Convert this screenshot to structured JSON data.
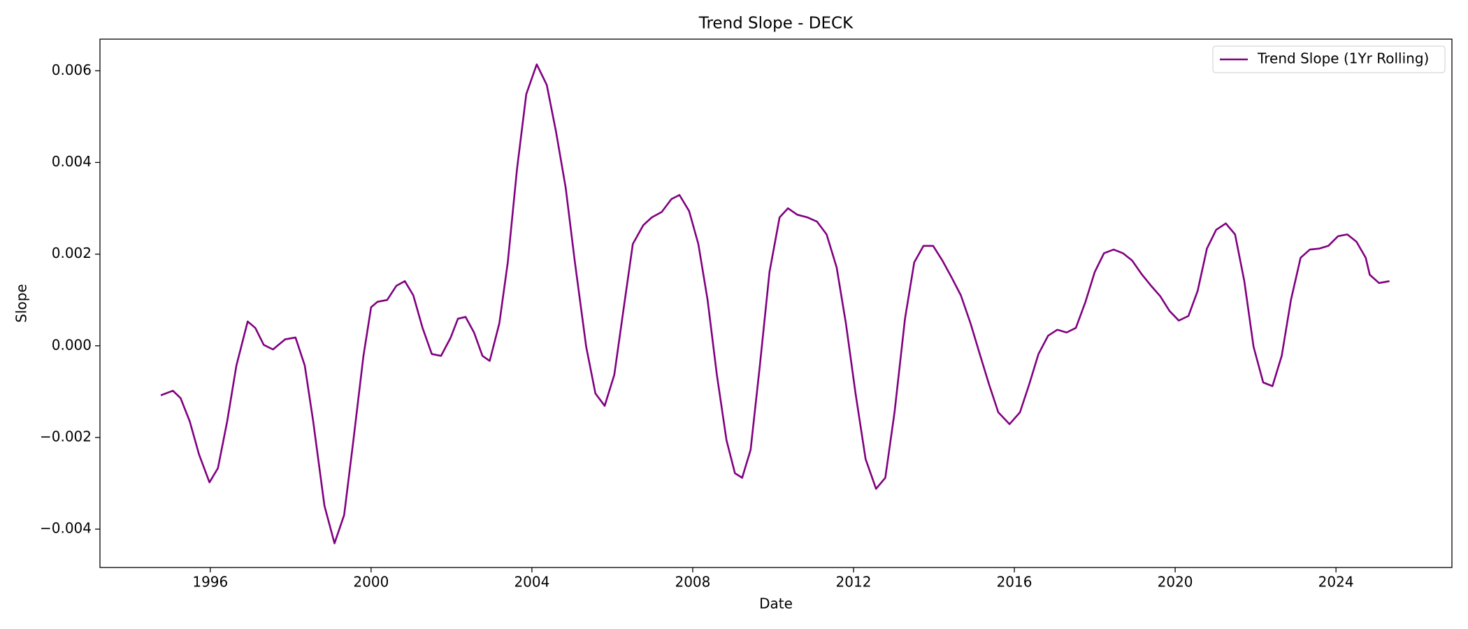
{
  "chart_data": {
    "type": "line",
    "title": "Trend Slope - DECK",
    "xlabel": "Date",
    "ylabel": "Slope",
    "x": [
      1994.77,
      1995.07,
      1995.26,
      1995.49,
      1995.72,
      1995.98,
      1996.19,
      1996.42,
      1996.65,
      1996.93,
      1997.12,
      1997.33,
      1997.56,
      1997.86,
      1998.12,
      1998.35,
      1998.56,
      1998.84,
      1999.09,
      1999.33,
      1999.56,
      1999.81,
      2000.0,
      2000.16,
      2000.4,
      2000.63,
      2000.84,
      2001.05,
      2001.28,
      2001.51,
      2001.74,
      2001.98,
      2002.16,
      2002.35,
      2002.56,
      2002.77,
      2002.95,
      2003.19,
      2003.4,
      2003.63,
      2003.86,
      2004.12,
      2004.37,
      2004.6,
      2004.84,
      2005.07,
      2005.35,
      2005.58,
      2005.81,
      2006.05,
      2006.28,
      2006.51,
      2006.77,
      2006.98,
      2007.23,
      2007.47,
      2007.67,
      2007.91,
      2008.14,
      2008.37,
      2008.6,
      2008.84,
      2009.05,
      2009.23,
      2009.44,
      2009.67,
      2009.91,
      2010.16,
      2010.37,
      2010.6,
      2010.86,
      2011.09,
      2011.33,
      2011.58,
      2011.81,
      2012.05,
      2012.3,
      2012.56,
      2012.79,
      2013.02,
      2013.28,
      2013.51,
      2013.74,
      2013.98,
      2014.21,
      2014.44,
      2014.67,
      2014.91,
      2015.14,
      2015.37,
      2015.6,
      2015.88,
      2016.14,
      2016.37,
      2016.6,
      2016.84,
      2017.07,
      2017.3,
      2017.53,
      2017.77,
      2018.0,
      2018.23,
      2018.47,
      2018.7,
      2018.93,
      2019.16,
      2019.4,
      2019.63,
      2019.86,
      2020.09,
      2020.33,
      2020.56,
      2020.79,
      2021.02,
      2021.26,
      2021.49,
      2021.72,
      2021.95,
      2022.19,
      2022.42,
      2022.65,
      2022.88,
      2023.12,
      2023.35,
      2023.58,
      2023.81,
      2024.05,
      2024.28,
      2024.51,
      2024.74,
      2024.84,
      2025.07,
      2025.33
    ],
    "series": [
      {
        "name": "Trend Slope (1Yr Rolling)",
        "color": "#800080",
        "values": [
          -0.00108,
          -0.00098,
          -0.00114,
          -0.00165,
          -0.00237,
          -0.00298,
          -0.00267,
          -0.00165,
          -0.00043,
          0.00053,
          0.00039,
          2e-05,
          -8e-05,
          0.00014,
          0.00018,
          -0.00043,
          -0.00165,
          -0.00349,
          -0.00431,
          -0.00369,
          -0.00206,
          -0.00022,
          0.00084,
          0.00096,
          0.001,
          0.00131,
          0.00141,
          0.0011,
          0.00039,
          -0.00018,
          -0.00022,
          0.00018,
          0.00059,
          0.00063,
          0.00029,
          -0.00022,
          -0.00033,
          0.00049,
          0.00182,
          0.00386,
          0.00549,
          0.00614,
          0.00569,
          0.00467,
          0.00345,
          0.00182,
          -2e-05,
          -0.00104,
          -0.00131,
          -0.00063,
          0.0008,
          0.00222,
          0.00263,
          0.0028,
          0.00292,
          0.0032,
          0.00329,
          0.00294,
          0.00222,
          0.001,
          -0.00063,
          -0.00206,
          -0.00278,
          -0.00288,
          -0.00227,
          -0.00043,
          0.00161,
          0.0028,
          0.003,
          0.00286,
          0.0028,
          0.00271,
          0.00243,
          0.00171,
          0.00049,
          -0.00104,
          -0.00247,
          -0.00312,
          -0.00288,
          -0.00145,
          0.00059,
          0.00182,
          0.00218,
          0.00218,
          0.00186,
          0.00149,
          0.0011,
          0.00049,
          -0.00018,
          -0.00084,
          -0.00145,
          -0.00171,
          -0.00145,
          -0.00084,
          -0.00018,
          0.00022,
          0.00035,
          0.00029,
          0.00039,
          0.00096,
          0.00161,
          0.00202,
          0.0021,
          0.00202,
          0.00186,
          0.00157,
          0.00131,
          0.00108,
          0.00076,
          0.00055,
          0.00065,
          0.0012,
          0.00212,
          0.00253,
          0.00267,
          0.00243,
          0.00141,
          -2e-05,
          -0.0008,
          -0.00088,
          -0.00022,
          0.001,
          0.00192,
          0.0021,
          0.00212,
          0.00218,
          0.00239,
          0.00243,
          0.00227,
          0.00192,
          0.00155,
          0.00137,
          0.00141
        ]
      }
    ],
    "xlim": [
      1993.256,
      2026.884
    ],
    "xticks": [
      1996,
      2000,
      2004,
      2008,
      2012,
      2016,
      2020,
      2024
    ],
    "ylim": [
      -0.004837,
      0.00669
    ],
    "yticks": [
      {
        "value": -0.004,
        "label": "−0.004"
      },
      {
        "value": -0.002,
        "label": "−0.002"
      },
      {
        "value": 0,
        "label": "0.000"
      },
      {
        "value": 0.002,
        "label": "0.002"
      },
      {
        "value": 0.004,
        "label": "0.004"
      },
      {
        "value": 0.006,
        "label": "0.006"
      }
    ],
    "grid": false,
    "legend": "upper right"
  }
}
